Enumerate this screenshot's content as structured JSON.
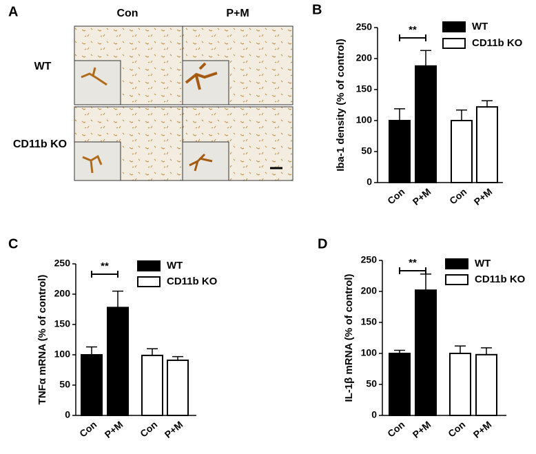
{
  "image_panel": {
    "label": "A",
    "columns": [
      "Con",
      "P+M"
    ],
    "rows": [
      "WT",
      "CD11b KO"
    ]
  },
  "chart_data": [
    {
      "type": "bar",
      "panel_label": "B",
      "ylabel": "Iba-1 density (% of control)",
      "categories": [
        "Con",
        "P+M",
        "Con",
        "P+M"
      ],
      "series": [
        {
          "name": "WT",
          "color": "#000000",
          "values": [
            100,
            188,
            null,
            null
          ],
          "errors": [
            19,
            25,
            null,
            null
          ]
        },
        {
          "name": "CD11b KO",
          "color": "#ffffff",
          "values": [
            null,
            null,
            100,
            122
          ],
          "errors": [
            null,
            null,
            17,
            10
          ]
        }
      ],
      "annotations": [
        "**"
      ],
      "ylim": [
        0,
        250
      ],
      "yticks": [
        0,
        50,
        100,
        150,
        200,
        250
      ]
    },
    {
      "type": "bar",
      "panel_label": "C",
      "ylabel": "TNFα mRNA (% of control)",
      "categories": [
        "Con",
        "P+M",
        "Con",
        "P+M"
      ],
      "series": [
        {
          "name": "WT",
          "color": "#000000",
          "values": [
            100,
            178,
            null,
            null
          ],
          "errors": [
            13,
            27,
            null,
            null
          ]
        },
        {
          "name": "CD11b KO",
          "color": "#ffffff",
          "values": [
            null,
            null,
            99,
            91
          ],
          "errors": [
            null,
            null,
            11,
            6
          ]
        }
      ],
      "annotations": [
        "**"
      ],
      "ylim": [
        0,
        250
      ],
      "yticks": [
        0,
        50,
        100,
        150,
        200,
        250
      ]
    },
    {
      "type": "bar",
      "panel_label": "D",
      "ylabel": "IL-1β mRNA (% of control)",
      "categories": [
        "Con",
        "P+M",
        "Con",
        "P+M"
      ],
      "series": [
        {
          "name": "WT",
          "color": "#000000",
          "values": [
            100,
            202,
            null,
            null
          ],
          "errors": [
            5,
            26,
            null,
            null
          ]
        },
        {
          "name": "CD11b KO",
          "color": "#ffffff",
          "values": [
            null,
            null,
            100,
            98
          ],
          "errors": [
            null,
            null,
            12,
            11
          ]
        }
      ],
      "annotations": [
        "**"
      ],
      "ylim": [
        0,
        250
      ],
      "yticks": [
        0,
        50,
        100,
        150,
        200,
        250
      ]
    }
  ]
}
